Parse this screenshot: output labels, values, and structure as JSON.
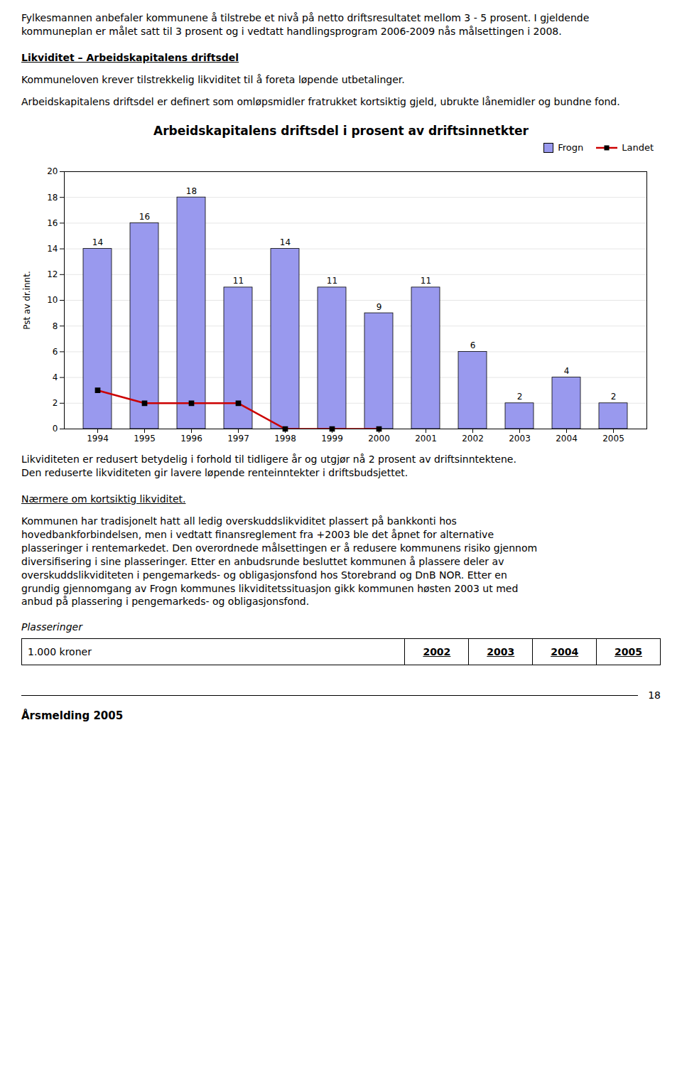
{
  "chart_data": {
    "type": "bar",
    "title": "Arbeidskapitalens driftsdel i prosent av driftsinnetkter",
    "categories": [
      "1994",
      "1995",
      "1996",
      "1997",
      "1998",
      "1999",
      "2000",
      "2001",
      "2002",
      "2003",
      "2004",
      "2005"
    ],
    "series": [
      {
        "name": "Frogn",
        "type": "bar",
        "color": "#9999ee",
        "values": [
          14,
          16,
          18,
          11,
          14,
          11,
          9,
          11,
          6,
          2,
          4,
          2
        ]
      },
      {
        "name": "Landet",
        "type": "line",
        "color": "#cc0000",
        "marker": "square",
        "values": [
          3,
          2,
          2,
          2,
          0,
          0,
          0,
          null,
          null,
          null,
          null,
          null
        ]
      }
    ],
    "ylabel": "Pst av dr.innt.",
    "ylim": [
      0,
      20
    ],
    "yticks": [
      0,
      2,
      4,
      6,
      8,
      10,
      12,
      14,
      16,
      18,
      20
    ],
    "grid": true,
    "legend": "upper right",
    "data_labels": true
  },
  "page_text": {
    "header_text": "Fylkesmannen anbefaler kommunene å tilstrebe et nivå på netto driftsresultatet mellom 3 - 5 prosent. I gjeldende kommuneplan er målet satt til 3 prosent og i vedtatt handlingsprogram 2006-2009 nås målsettingen i 2008.",
    "section_title": "Likviditet – Arbeidskapitalens driftsdel",
    "section_text1": "Kommuneloven krever tilstrekkelig likviditet til å foreta løpende utbetalinger.",
    "section_text2": "Arbeidskapitalens driftsdel er definert som omløpsmidler fratrukket kortsiktig gjeld, ubrukte lånemidler og bundne fond.",
    "body_text1": "Likviditeten er redusert betydelig i forhold til tidligere år og utgjør nå 2 prosent av driftsinntektene.\nDen reduserte likviditeten gir lavere løpende renteinntekter i driftsbudsjettet.",
    "section_title2": "Nærmere om kortsiktig likviditet.",
    "body_text2": "Kommunen har tradisjonelt hatt all ledig overskuddslikviditet plassert på bankkonti hos\nhovedbankforbindelsen, men i vedtatt finansreglement fra +2003 ble det åpnet for alternative\nplasseringer i rentemarkedet. Den overordnede målsettingen er å redusere kommunens risiko gjennom\ndiversifisering i sine plasseringer. Etter en anbudsrunde besluttet kommunen å plassere deler av\noverskuddslikviditeten i pengemarkeds- og obligasjonsfond hos Storebrand og DnB NOR. Etter en\ngrundig gjennomgang av Frogn kommunes likviditetssituasjon gikk kommunen høsten 2003 ut med\nanbud på plassering i pengemarkeds- og obligasjonsfond.",
    "table_header": "Plasseringer",
    "table_row": "1.000 kroner",
    "table_cols": [
      "2002",
      "2003",
      "2004",
      "2005"
    ],
    "page_num": "18",
    "footer_text": "Årsmelding 2005"
  }
}
